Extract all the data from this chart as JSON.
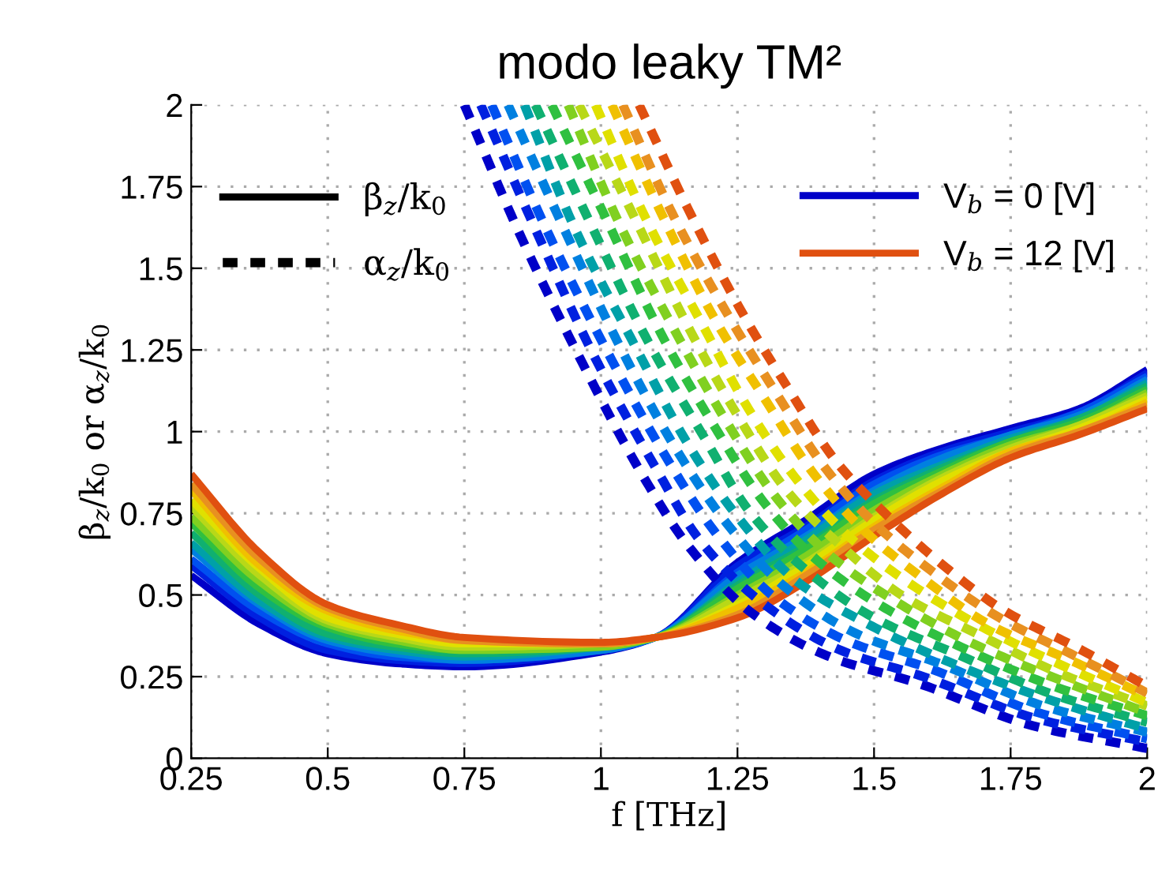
{
  "chart_data": {
    "type": "line",
    "title": "modo leaky TM²",
    "xlabel": "f [THz]",
    "ylabel": "β$_{z}$/k$_{0}$ or α$_{z}$/k$_{0}$",
    "annotations": [
      "β$_{z}$/k$_{0}$",
      "α$_{z}$/k$_{0}$"
    ],
    "xlim": [
      0.25,
      2
    ],
    "xticks": [
      0.25,
      0.5,
      0.75,
      1,
      1.25,
      1.5,
      1.75,
      2
    ],
    "ylim": [
      0,
      2
    ],
    "yticks": [
      0,
      0.25,
      0.5,
      0.75,
      1,
      1.25,
      1.5,
      1.75,
      2
    ],
    "grid": true,
    "legend": "top right",
    "marker": "none",
    "series": [
      {
        "name": "V$_{b}$ = 0 [V]",
        "color": "#0000c8",
        "line_style": "solid",
        "x": [
          0.25,
          0.375,
          0.5,
          0.625,
          0.75,
          1.0,
          1.1,
          1.25,
          1.375,
          1.5,
          1.625,
          1.75,
          1.875,
          2.0
        ],
        "values": [
          0.56,
          0.41,
          0.32,
          0.29,
          0.28,
          0.325,
          0.37,
          0.6,
          0.73,
          0.87,
          0.95,
          1.01,
          1.07,
          1.19
        ]
      },
      {
        "color": "#0020e0",
        "line_style": "solid",
        "x": [
          0.25,
          0.375,
          0.5,
          0.625,
          0.75,
          1.0,
          1.1,
          1.25,
          1.375,
          1.5,
          1.625,
          1.75,
          1.875,
          2.0
        ],
        "values": [
          0.59,
          0.43,
          0.33,
          0.3,
          0.29,
          0.33,
          0.37,
          0.59,
          0.71,
          0.85,
          0.94,
          1.0,
          1.06,
          1.18
        ]
      },
      {
        "color": "#0050f0",
        "line_style": "solid",
        "x": [
          0.25,
          0.375,
          0.5,
          0.625,
          0.75,
          1.0,
          1.1,
          1.25,
          1.375,
          1.5,
          1.625,
          1.75,
          1.875,
          2.0
        ],
        "values": [
          0.61,
          0.45,
          0.35,
          0.31,
          0.3,
          0.33,
          0.37,
          0.57,
          0.7,
          0.84,
          0.93,
          0.99,
          1.06,
          1.17
        ]
      },
      {
        "color": "#0080e0",
        "line_style": "solid",
        "x": [
          0.25,
          0.375,
          0.5,
          0.625,
          0.75,
          1.0,
          1.1,
          1.25,
          1.375,
          1.5,
          1.625,
          1.75,
          1.875,
          2.0
        ],
        "values": [
          0.64,
          0.47,
          0.36,
          0.32,
          0.3,
          0.33,
          0.37,
          0.56,
          0.68,
          0.82,
          0.92,
          0.99,
          1.05,
          1.16
        ]
      },
      {
        "color": "#00a0a8",
        "line_style": "solid",
        "x": [
          0.25,
          0.375,
          0.5,
          0.625,
          0.75,
          1.0,
          1.1,
          1.25,
          1.375,
          1.5,
          1.625,
          1.75,
          1.875,
          2.0
        ],
        "values": [
          0.66,
          0.48,
          0.37,
          0.33,
          0.31,
          0.34,
          0.37,
          0.54,
          0.67,
          0.81,
          0.9,
          0.98,
          1.04,
          1.15
        ]
      },
      {
        "color": "#10b070",
        "line_style": "solid",
        "x": [
          0.25,
          0.375,
          0.5,
          0.625,
          0.75,
          1.0,
          1.1,
          1.25,
          1.375,
          1.5,
          1.625,
          1.75,
          1.875,
          2.0
        ],
        "values": [
          0.69,
          0.5,
          0.38,
          0.34,
          0.32,
          0.34,
          0.37,
          0.53,
          0.65,
          0.79,
          0.89,
          0.97,
          1.04,
          1.14
        ]
      },
      {
        "color": "#30c040",
        "line_style": "solid",
        "x": [
          0.25,
          0.375,
          0.5,
          0.625,
          0.75,
          1.0,
          1.1,
          1.25,
          1.375,
          1.5,
          1.625,
          1.75,
          1.875,
          2.0
        ],
        "values": [
          0.72,
          0.52,
          0.4,
          0.35,
          0.33,
          0.34,
          0.37,
          0.52,
          0.64,
          0.78,
          0.88,
          0.97,
          1.03,
          1.13
        ]
      },
      {
        "color": "#80d020",
        "line_style": "solid",
        "x": [
          0.25,
          0.375,
          0.5,
          0.625,
          0.75,
          1.0,
          1.1,
          1.25,
          1.375,
          1.5,
          1.625,
          1.75,
          1.875,
          2.0
        ],
        "values": [
          0.74,
          0.54,
          0.41,
          0.36,
          0.33,
          0.34,
          0.37,
          0.5,
          0.62,
          0.76,
          0.87,
          0.96,
          1.02,
          1.12
        ]
      },
      {
        "color": "#b8d818",
        "line_style": "solid",
        "x": [
          0.25,
          0.375,
          0.5,
          0.625,
          0.75,
          1.0,
          1.1,
          1.25,
          1.375,
          1.5,
          1.625,
          1.75,
          1.875,
          2.0
        ],
        "values": [
          0.77,
          0.56,
          0.42,
          0.37,
          0.34,
          0.35,
          0.37,
          0.49,
          0.6,
          0.74,
          0.86,
          0.95,
          1.02,
          1.11
        ]
      },
      {
        "color": "#e0e000",
        "line_style": "solid",
        "x": [
          0.25,
          0.375,
          0.5,
          0.625,
          0.75,
          1.0,
          1.1,
          1.25,
          1.375,
          1.5,
          1.625,
          1.75,
          1.875,
          2.0
        ],
        "values": [
          0.79,
          0.58,
          0.43,
          0.38,
          0.35,
          0.35,
          0.37,
          0.47,
          0.59,
          0.73,
          0.85,
          0.94,
          1.01,
          1.1
        ]
      },
      {
        "color": "#f0c000",
        "line_style": "solid",
        "x": [
          0.25,
          0.375,
          0.5,
          0.625,
          0.75,
          1.0,
          1.1,
          1.25,
          1.375,
          1.5,
          1.625,
          1.75,
          1.875,
          2.0
        ],
        "values": [
          0.82,
          0.59,
          0.45,
          0.39,
          0.36,
          0.35,
          0.37,
          0.46,
          0.57,
          0.71,
          0.83,
          0.94,
          1.0,
          1.09
        ]
      },
      {
        "color": "#e89020",
        "line_style": "solid",
        "x": [
          0.25,
          0.375,
          0.5,
          0.625,
          0.75,
          1.0,
          1.1,
          1.25,
          1.375,
          1.5,
          1.625,
          1.75,
          1.875,
          2.0
        ],
        "values": [
          0.84,
          0.61,
          0.46,
          0.4,
          0.36,
          0.35,
          0.37,
          0.44,
          0.56,
          0.7,
          0.82,
          0.93,
          1.0,
          1.08
        ]
      },
      {
        "name": "V$_{b}$ = 12 [V]",
        "color": "#e05010",
        "line_style": "solid",
        "x": [
          0.25,
          0.375,
          0.5,
          0.625,
          0.75,
          1.0,
          1.1,
          1.25,
          1.375,
          1.5,
          1.625,
          1.75,
          1.875,
          2.0
        ],
        "values": [
          0.87,
          0.63,
          0.47,
          0.41,
          0.37,
          0.355,
          0.37,
          0.43,
          0.54,
          0.68,
          0.81,
          0.92,
          0.99,
          1.07
        ]
      },
      {
        "color": "#0000c8",
        "line_style": "dashed",
        "x": [
          0.75,
          0.85,
          0.96,
          1.075,
          1.16,
          1.28,
          1.42,
          1.58,
          1.79,
          2.0
        ],
        "values": [
          2.0,
          1.61,
          1.23,
          0.87,
          0.65,
          0.44,
          0.31,
          0.23,
          0.1,
          0.03
        ]
      },
      {
        "color": "#0020e0",
        "line_style": "dashed",
        "x": [
          0.78,
          0.88,
          0.985,
          1.1,
          1.18,
          1.3,
          1.44,
          1.59,
          1.8,
          2.0
        ],
        "values": [
          2.0,
          1.62,
          1.24,
          0.89,
          0.67,
          0.47,
          0.33,
          0.25,
          0.12,
          0.05
        ]
      },
      {
        "color": "#0050f0",
        "line_style": "dashed",
        "x": [
          0.8,
          0.9,
          1.01,
          1.12,
          1.21,
          1.32,
          1.45,
          1.61,
          1.8,
          2.0
        ],
        "values": [
          2.0,
          1.62,
          1.25,
          0.92,
          0.69,
          0.49,
          0.36,
          0.27,
          0.14,
          0.06
        ]
      },
      {
        "color": "#0080e0",
        "line_style": "dashed",
        "x": [
          0.83,
          0.93,
          1.035,
          1.14,
          1.23,
          1.34,
          1.47,
          1.62,
          1.81,
          2.0
        ],
        "values": [
          2.0,
          1.63,
          1.26,
          0.94,
          0.72,
          0.52,
          0.38,
          0.29,
          0.16,
          0.08
        ]
      },
      {
        "color": "#00a0a8",
        "line_style": "dashed",
        "x": [
          0.86,
          0.95,
          1.06,
          1.16,
          1.25,
          1.36,
          1.49,
          1.63,
          1.82,
          2.0
        ],
        "values": [
          2.0,
          1.63,
          1.27,
          0.96,
          0.74,
          0.54,
          0.41,
          0.3,
          0.18,
          0.09
        ]
      },
      {
        "color": "#10b070",
        "line_style": "dashed",
        "x": [
          0.88,
          0.98,
          1.085,
          1.19,
          1.27,
          1.38,
          1.5,
          1.65,
          1.82,
          2.0
        ],
        "values": [
          2.0,
          1.64,
          1.28,
          0.98,
          0.76,
          0.57,
          0.43,
          0.32,
          0.2,
          0.11
        ]
      },
      {
        "color": "#30c040",
        "line_style": "dashed",
        "x": [
          0.91,
          1.01,
          1.11,
          1.21,
          1.3,
          1.4,
          1.52,
          1.66,
          1.83,
          2.0
        ],
        "values": [
          2.0,
          1.65,
          1.3,
          1.01,
          0.78,
          0.6,
          0.46,
          0.34,
          0.22,
          0.13
        ]
      },
      {
        "color": "#80d020",
        "line_style": "dashed",
        "x": [
          0.94,
          1.03,
          1.135,
          1.23,
          1.32,
          1.42,
          1.54,
          1.67,
          1.84,
          2.0
        ],
        "values": [
          2.0,
          1.65,
          1.31,
          1.03,
          0.8,
          0.62,
          0.48,
          0.36,
          0.24,
          0.14
        ]
      },
      {
        "color": "#b8d818",
        "line_style": "dashed",
        "x": [
          0.96,
          1.06,
          1.16,
          1.25,
          1.34,
          1.44,
          1.55,
          1.69,
          1.84,
          2.0
        ],
        "values": [
          2.0,
          1.66,
          1.32,
          1.05,
          0.82,
          0.65,
          0.5,
          0.38,
          0.26,
          0.16
        ]
      },
      {
        "color": "#e0e000",
        "line_style": "dashed",
        "x": [
          0.99,
          1.08,
          1.185,
          1.27,
          1.36,
          1.46,
          1.57,
          1.7,
          1.85,
          2.0
        ],
        "values": [
          2.0,
          1.66,
          1.33,
          1.07,
          0.85,
          0.67,
          0.53,
          0.4,
          0.28,
          0.17
        ]
      },
      {
        "color": "#f0c000",
        "line_style": "dashed",
        "x": [
          1.02,
          1.11,
          1.21,
          1.3,
          1.39,
          1.48,
          1.59,
          1.71,
          1.86,
          2.0
        ],
        "values": [
          2.0,
          1.67,
          1.34,
          1.1,
          0.87,
          0.7,
          0.55,
          0.41,
          0.3,
          0.19
        ]
      },
      {
        "color": "#e89020",
        "line_style": "dashed",
        "x": [
          1.04,
          1.13,
          1.235,
          1.32,
          1.41,
          1.5,
          1.6,
          1.73,
          1.86,
          2.0
        ],
        "values": [
          2.0,
          1.67,
          1.35,
          1.12,
          0.89,
          0.72,
          0.58,
          0.43,
          0.32,
          0.2
        ]
      },
      {
        "color": "#e05010",
        "line_style": "dashed",
        "x": [
          1.07,
          1.16,
          1.26,
          1.34,
          1.43,
          1.52,
          1.62,
          1.74,
          1.87,
          2.0
        ],
        "values": [
          2.0,
          1.68,
          1.36,
          1.14,
          0.91,
          0.75,
          0.6,
          0.45,
          0.34,
          0.22
        ]
      }
    ]
  }
}
